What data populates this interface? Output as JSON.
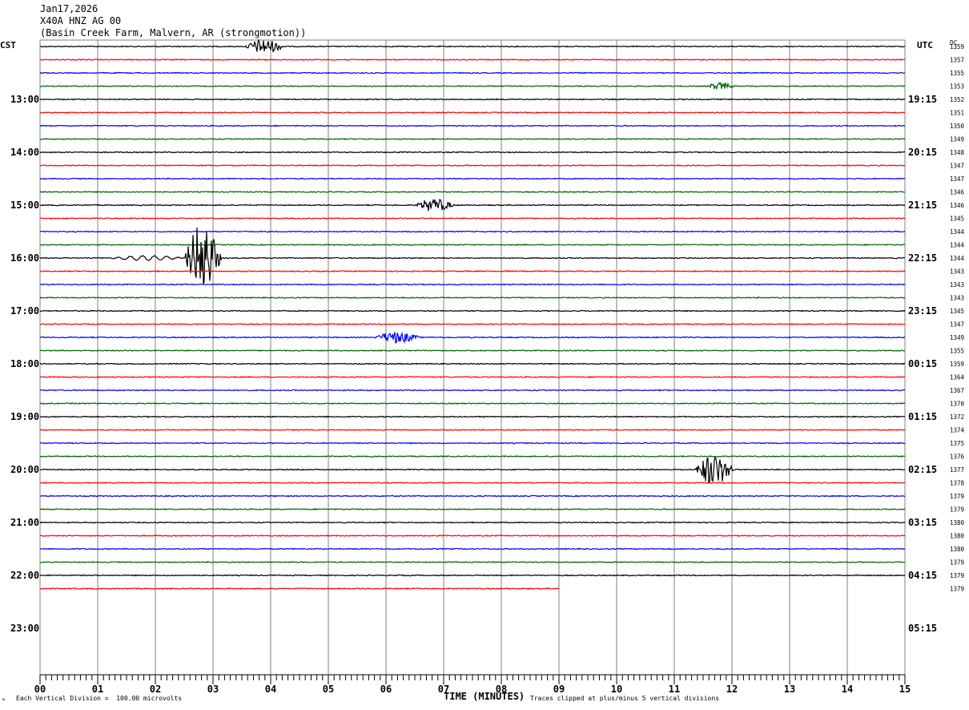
{
  "header": {
    "date": "Jan17,2026",
    "station": "X40A HNZ AG 00",
    "location": "(Basin Creek Farm, Malvern, AR (strongmotion))"
  },
  "left_tz": "CST",
  "right_tz": "UTC",
  "dc_label": "DC",
  "footer": {
    "left_mark": "ᴹ",
    "scale_note": "Each Vertical Division =  100.00 microvolts",
    "clip_note": "Traces clipped at plus/minus 5 vertical divisions"
  },
  "colors": {
    "black": "#000000",
    "red": "#ff0000",
    "blue": "#0000ff",
    "green": "#006400",
    "grid": "#808080"
  },
  "chart_data": {
    "type": "line",
    "title": "",
    "xlabel": "TIME (MINUTES)",
    "ylabel": "",
    "xlim": [
      0,
      15
    ],
    "x_ticks": [
      "00",
      "01",
      "02",
      "03",
      "04",
      "05",
      "06",
      "07",
      "08",
      "09",
      "10",
      "11",
      "12",
      "13",
      "14",
      "15"
    ],
    "rows_per_hour": 4,
    "row_minutes": 15,
    "hours_shown": 11,
    "left_hour_labels": [
      "13:00",
      "14:00",
      "15:00",
      "16:00",
      "17:00",
      "18:00",
      "19:00",
      "20:00",
      "21:00",
      "22:00",
      "23:00"
    ],
    "right_hour_labels": [
      "19:15",
      "20:15",
      "21:15",
      "22:15",
      "23:15",
      "00:15",
      "01:15",
      "02:15",
      "03:15",
      "04:15",
      "05:15"
    ],
    "trace_color_cycle": [
      "black",
      "red",
      "blue",
      "green"
    ],
    "traces": [
      {
        "dc": "1359"
      },
      {
        "dc": "1357"
      },
      {
        "dc": "1355"
      },
      {
        "dc": "1353"
      },
      {
        "dc": "1352"
      },
      {
        "dc": "1351"
      },
      {
        "dc": "1350"
      },
      {
        "dc": "1349"
      },
      {
        "dc": "1348"
      },
      {
        "dc": "1347"
      },
      {
        "dc": "1347"
      },
      {
        "dc": "1346"
      },
      {
        "dc": "1346"
      },
      {
        "dc": "1345"
      },
      {
        "dc": "1344"
      },
      {
        "dc": "1344"
      },
      {
        "dc": "1344"
      },
      {
        "dc": "1343"
      },
      {
        "dc": "1343"
      },
      {
        "dc": "1343"
      },
      {
        "dc": "1345"
      },
      {
        "dc": "1347"
      },
      {
        "dc": "1349"
      },
      {
        "dc": "1355"
      },
      {
        "dc": "1359"
      },
      {
        "dc": "1364"
      },
      {
        "dc": "1367"
      },
      {
        "dc": "1370"
      },
      {
        "dc": "1372"
      },
      {
        "dc": "1374"
      },
      {
        "dc": "1375"
      },
      {
        "dc": "1376"
      },
      {
        "dc": "1377"
      },
      {
        "dc": "1378"
      },
      {
        "dc": "1379"
      },
      {
        "dc": "1379"
      },
      {
        "dc": "1380"
      },
      {
        "dc": "1380"
      },
      {
        "dc": "1380"
      },
      {
        "dc": "1379"
      },
      {
        "dc": "1379"
      },
      {
        "dc": "1379",
        "end_minute": 9.0
      }
    ],
    "events": [
      {
        "trace": 0,
        "minute": 3.55,
        "duration": 0.7,
        "amplitude": 9
      },
      {
        "trace": 3,
        "minute": 11.55,
        "duration": 0.5,
        "amplitude": 4
      },
      {
        "trace": 12,
        "minute": 6.5,
        "duration": 0.7,
        "amplitude": 8
      },
      {
        "trace": 16,
        "minute": 2.5,
        "duration": 0.65,
        "amplitude": 45
      },
      {
        "trace": 22,
        "minute": 5.8,
        "duration": 0.8,
        "amplitude": 7
      },
      {
        "trace": 32,
        "minute": 11.35,
        "duration": 0.7,
        "amplitude": 20
      }
    ]
  }
}
